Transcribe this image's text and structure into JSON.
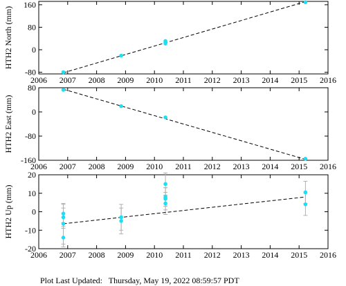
{
  "footer": {
    "label": "Plot Last Updated:",
    "timestamp": "Thursday, May 19, 2022 08:59:57 PDT"
  },
  "colors": {
    "point": "#19e0f5",
    "fit_line": "#000000",
    "error_bar": "#b0b0b0",
    "axis": "#000000",
    "background": "#ffffff"
  },
  "chart_data": [
    {
      "type": "scatter",
      "ylabel": "HTH2 North (mm)",
      "xlim": [
        2006,
        2016
      ],
      "ylim": [
        -86,
        172
      ],
      "xticks": [
        2006,
        2007,
        2008,
        2009,
        2010,
        2011,
        2012,
        2013,
        2014,
        2015,
        2016
      ],
      "yticks": [
        -80,
        0,
        80,
        160
      ],
      "points": [
        {
          "x": 2006.85,
          "y": -80
        },
        {
          "x": 2008.85,
          "y": -21
        },
        {
          "x": 2010.38,
          "y": 22
        },
        {
          "x": 2010.38,
          "y": 26
        },
        {
          "x": 2010.38,
          "y": 31
        },
        {
          "x": 2015.22,
          "y": 169
        }
      ],
      "fit_line": {
        "x": [
          2006.85,
          2015.22
        ],
        "y": [
          -82,
          171
        ]
      },
      "grid": false,
      "legend": "none"
    },
    {
      "type": "scatter",
      "ylabel": "HTH2 East (mm)",
      "xlim": [
        2006,
        2016
      ],
      "ylim": [
        -160,
        80
      ],
      "xticks": [
        2006,
        2007,
        2008,
        2009,
        2010,
        2011,
        2012,
        2013,
        2014,
        2015,
        2016
      ],
      "yticks": [
        -160,
        -80,
        0,
        80
      ],
      "points": [
        {
          "x": 2006.85,
          "y": 73
        },
        {
          "x": 2008.85,
          "y": 19
        },
        {
          "x": 2010.38,
          "y": -18
        },
        {
          "x": 2015.22,
          "y": -155
        }
      ],
      "fit_line": {
        "x": [
          2006.85,
          2015.22
        ],
        "y": [
          75,
          -157
        ]
      },
      "grid": false,
      "legend": "none"
    },
    {
      "type": "scatter",
      "ylabel": "HTH2 Up (mm)",
      "xlim": [
        2006,
        2016
      ],
      "ylim": [
        -20,
        20
      ],
      "xticks": [
        2006,
        2007,
        2008,
        2009,
        2010,
        2011,
        2012,
        2013,
        2014,
        2015,
        2016
      ],
      "yticks": [
        -20,
        -10,
        0,
        10,
        20
      ],
      "points": [
        {
          "x": 2006.85,
          "y": -1,
          "err": 5
        },
        {
          "x": 2006.85,
          "y": -3,
          "err": 5
        },
        {
          "x": 2006.85,
          "y": -6.5,
          "err": 11
        },
        {
          "x": 2006.85,
          "y": -14,
          "err": 5
        },
        {
          "x": 2008.85,
          "y": -3,
          "err": 7
        },
        {
          "x": 2008.85,
          "y": -5,
          "err": 7
        },
        {
          "x": 2010.38,
          "y": 15,
          "err": 6
        },
        {
          "x": 2010.38,
          "y": 8,
          "err": 5
        },
        {
          "x": 2010.38,
          "y": 7,
          "err": 6
        },
        {
          "x": 2010.38,
          "y": 4.5,
          "err": 6
        },
        {
          "x": 2015.22,
          "y": 10.5,
          "err": 6
        },
        {
          "x": 2015.22,
          "y": 4,
          "err": 6
        }
      ],
      "fit_line": {
        "x": [
          2006.85,
          2015.22
        ],
        "y": [
          -6.5,
          8
        ]
      },
      "grid": false,
      "legend": "none"
    }
  ]
}
